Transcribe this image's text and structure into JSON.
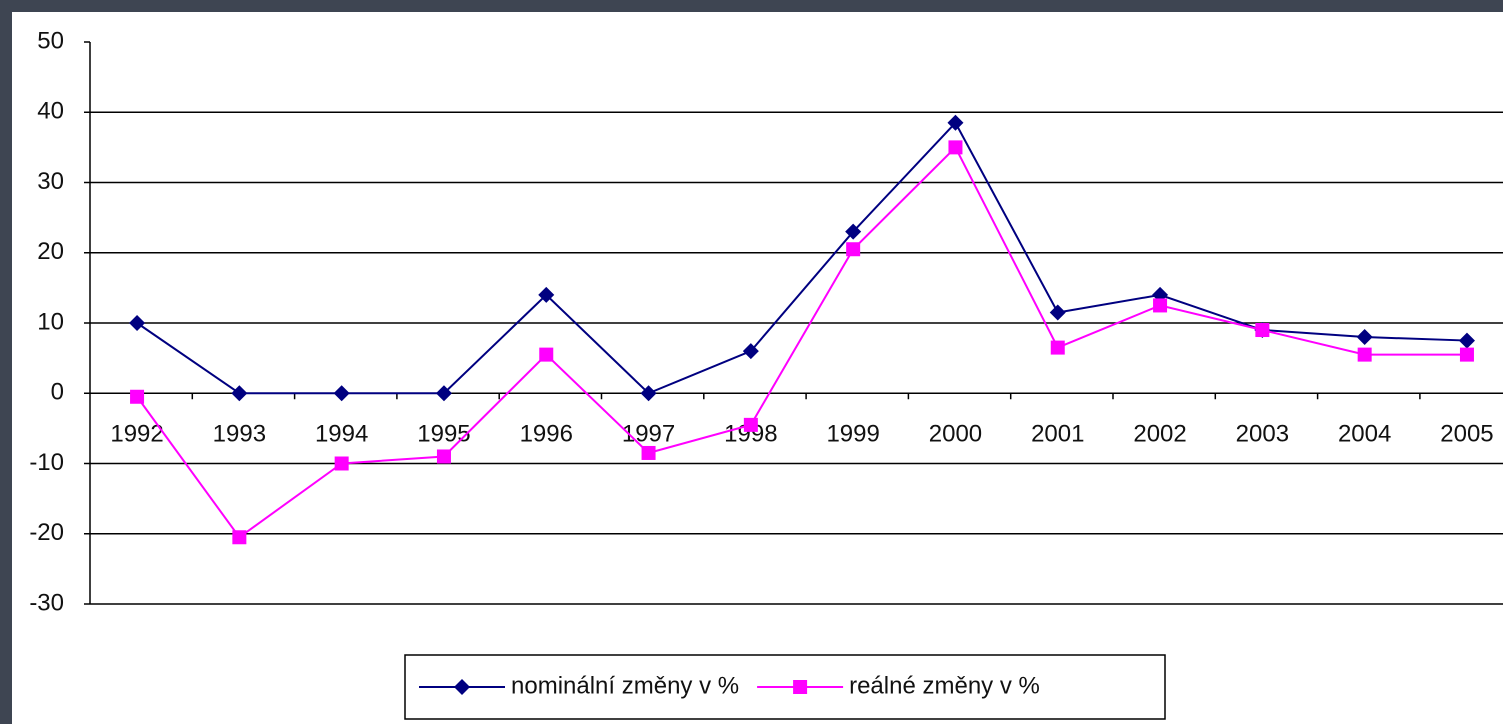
{
  "chart_data": {
    "type": "line",
    "categories": [
      "1992",
      "1993",
      "1994",
      "1995",
      "1996",
      "1997",
      "1998",
      "1999",
      "2000",
      "2001",
      "2002",
      "2003",
      "2004",
      "2005"
    ],
    "series": [
      {
        "name": "nominální změny v %",
        "color": "#000080",
        "marker": "diamond",
        "values": [
          10,
          0,
          0,
          0,
          14,
          0,
          6,
          23,
          38.5,
          11.5,
          14,
          9,
          8,
          7.5
        ]
      },
      {
        "name": "reálné změny v %",
        "color": "#ff00ff",
        "marker": "square",
        "values": [
          -0.5,
          -20.5,
          -10,
          -9,
          5.5,
          -8.5,
          -4.5,
          20.5,
          35,
          6.5,
          12.5,
          9,
          5.5,
          5.5
        ]
      }
    ],
    "ylim": [
      -30,
      50
    ],
    "yticks": [
      -30,
      -20,
      -10,
      0,
      10,
      20,
      30,
      40,
      50
    ],
    "grid": true,
    "legend": "bottom"
  }
}
